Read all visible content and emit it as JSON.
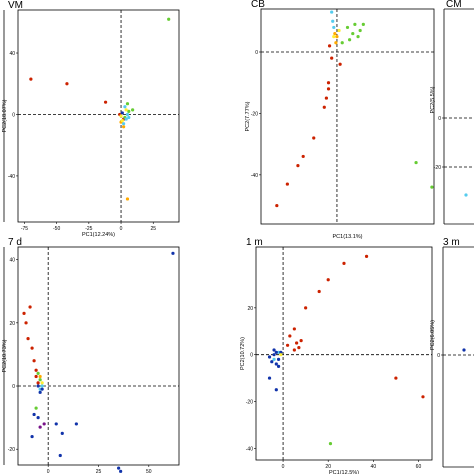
{
  "chart_data": [
    {
      "type": "scatter",
      "title": "VM",
      "xlabel": "PC1(12.24%)",
      "ylabel": "PC2(18.07%)",
      "xlim": [
        -80,
        45
      ],
      "ylim": [
        -70,
        68
      ],
      "xticks": [
        -75,
        -50,
        -25,
        0,
        25
      ],
      "yticks": [
        -40,
        0,
        40
      ],
      "series": [
        {
          "color": "#cc2200",
          "points": [
            [
              -70,
              23
            ],
            [
              -42,
              20
            ],
            [
              -12,
              8
            ],
            [
              -1,
              0
            ],
            [
              2,
              -3
            ]
          ]
        },
        {
          "color": "#ffaa00",
          "points": [
            [
              5,
              -55
            ],
            [
              0,
              -5
            ],
            [
              2,
              -8
            ]
          ]
        },
        {
          "color": "#66cc33",
          "points": [
            [
              37,
              62
            ],
            [
              5,
              7
            ],
            [
              9,
              3
            ],
            [
              3,
              -2
            ],
            [
              6,
              2
            ]
          ]
        },
        {
          "color": "#55ccee",
          "points": [
            [
              3,
              5
            ],
            [
              4,
              -3
            ],
            [
              5,
              0
            ],
            [
              2,
              -6
            ],
            [
              6,
              -2
            ]
          ]
        },
        {
          "color": "#ffee33",
          "points": [
            [
              1,
              -4
            ],
            [
              0,
              -1
            ],
            [
              4,
              3
            ]
          ]
        },
        {
          "color": "#1133aa",
          "points": [
            [
              1,
              1
            ]
          ]
        }
      ]
    },
    {
      "type": "scatter",
      "title": "CB",
      "xlabel": "PC1(13.1%)",
      "ylabel": "PC2(7.77%)",
      "xlim": [
        -72,
        92
      ],
      "ylim": [
        -56,
        14
      ],
      "xticks": [],
      "yticks": [
        -40,
        -20,
        0
      ],
      "series": [
        {
          "color": "#cc2200",
          "points": [
            [
              -57,
              -50
            ],
            [
              -47,
              -43
            ],
            [
              -37,
              -37
            ],
            [
              -32,
              -34
            ],
            [
              -22,
              -28
            ],
            [
              -12,
              -18
            ],
            [
              -10,
              -15
            ],
            [
              -8,
              -12
            ],
            [
              -8,
              -10
            ],
            [
              -5,
              -2
            ],
            [
              -7,
              2
            ],
            [
              3,
              -4
            ]
          ]
        },
        {
          "color": "#66cc33",
          "points": [
            [
              10,
              8
            ],
            [
              17,
              9
            ],
            [
              25,
              9
            ],
            [
              15,
              6
            ],
            [
              20,
              5
            ],
            [
              12,
              4
            ],
            [
              22,
              7
            ],
            [
              5,
              3
            ],
            [
              75,
              -36
            ],
            [
              90,
              -44
            ]
          ]
        },
        {
          "color": "#55ccee",
          "points": [
            [
              -5,
              13
            ],
            [
              -4,
              10
            ],
            [
              -3,
              8
            ]
          ]
        },
        {
          "color": "#ffaa00",
          "points": [
            [
              -2,
              6
            ],
            [
              -1,
              3
            ],
            [
              0,
              5
            ]
          ]
        },
        {
          "color": "#ffee33",
          "points": [
            [
              -3,
              5
            ],
            [
              2,
              7
            ]
          ]
        }
      ]
    },
    {
      "type": "scatter",
      "title": "7 d",
      "xlabel": "PC1(16.45%)",
      "ylabel": "PC2(10.73%)",
      "xlim": [
        -15,
        65
      ],
      "ylim": [
        -25,
        44
      ],
      "xticks": [
        0,
        25,
        50
      ],
      "yticks": [
        -20,
        0,
        20,
        40
      ],
      "series": [
        {
          "color": "#cc2200",
          "points": [
            [
              -12,
              23
            ],
            [
              -9,
              25
            ],
            [
              -11,
              20
            ],
            [
              -10,
              15
            ],
            [
              -8,
              12
            ],
            [
              -7,
              8
            ],
            [
              -6,
              5
            ],
            [
              -6,
              3
            ],
            [
              -5,
              1
            ]
          ]
        },
        {
          "color": "#66cc33",
          "points": [
            [
              -5,
              4
            ],
            [
              -4,
              2
            ],
            [
              -6,
              -7
            ]
          ]
        },
        {
          "color": "#ffaa00",
          "points": [
            [
              -4,
              3
            ]
          ]
        },
        {
          "color": "#ffee33",
          "points": [
            [
              -3,
              1
            ]
          ]
        },
        {
          "color": "#55ccee",
          "points": [
            [
              -4,
              -1
            ],
            [
              -3,
              0
            ]
          ]
        },
        {
          "color": "#1133aa",
          "points": [
            [
              -5,
              0
            ],
            [
              -4,
              -2
            ],
            [
              -3,
              -1
            ],
            [
              -7,
              -9
            ],
            [
              -5,
              -10
            ],
            [
              -8,
              -16
            ],
            [
              4,
              -12
            ],
            [
              7,
              -15
            ],
            [
              14,
              -12
            ],
            [
              6,
              -22
            ],
            [
              35,
              -26
            ],
            [
              36,
              -27
            ],
            [
              62,
              42
            ]
          ]
        },
        {
          "color": "#771188",
          "points": [
            [
              -2,
              -12
            ],
            [
              -4,
              -13
            ]
          ]
        }
      ]
    },
    {
      "type": "scatter",
      "title": "1 m",
      "xlabel": "PC1(12.5%)",
      "ylabel": "PC2(10.72%)",
      "xlim": [
        -12,
        66
      ],
      "ylim": [
        -45,
        46
      ],
      "xticks": [
        0,
        20,
        40,
        60
      ],
      "yticks": [
        -40,
        -20,
        0,
        20
      ],
      "series": [
        {
          "color": "#cc2200",
          "points": [
            [
              37,
              42
            ],
            [
              27,
              39
            ],
            [
              20,
              32
            ],
            [
              16,
              27
            ],
            [
              10,
              20
            ],
            [
              5,
              11
            ],
            [
              3,
              8
            ],
            [
              2,
              4
            ],
            [
              6,
              5
            ],
            [
              8,
              6
            ],
            [
              50,
              -10
            ],
            [
              62,
              -18
            ],
            [
              5,
              2
            ],
            [
              7,
              3
            ]
          ]
        },
        {
          "color": "#66cc33",
          "points": [
            [
              21,
              -38
            ]
          ]
        },
        {
          "color": "#55ccee",
          "points": [
            [
              -4,
              -2
            ],
            [
              -2,
              1
            ]
          ]
        },
        {
          "color": "#1133aa",
          "points": [
            [
              -6,
              -1
            ],
            [
              -4,
              0
            ],
            [
              -3,
              1
            ],
            [
              -2,
              -2
            ],
            [
              -1,
              1
            ],
            [
              -5,
              -3
            ],
            [
              -3,
              -4
            ],
            [
              -2,
              -5
            ],
            [
              -6,
              -10
            ],
            [
              -3,
              -15
            ],
            [
              -4,
              2
            ]
          ]
        },
        {
          "color": "#ffee33",
          "points": [
            [
              -1,
              0
            ]
          ]
        }
      ]
    }
  ],
  "partial_panels": [
    {
      "title": "CM",
      "ylabel": "PC2(5.5%)",
      "yticks": [
        "0",
        "-20"
      ]
    },
    {
      "title": "3 m",
      "ylabel": "PC2(6.05%)",
      "yticks": [
        "0"
      ]
    }
  ]
}
